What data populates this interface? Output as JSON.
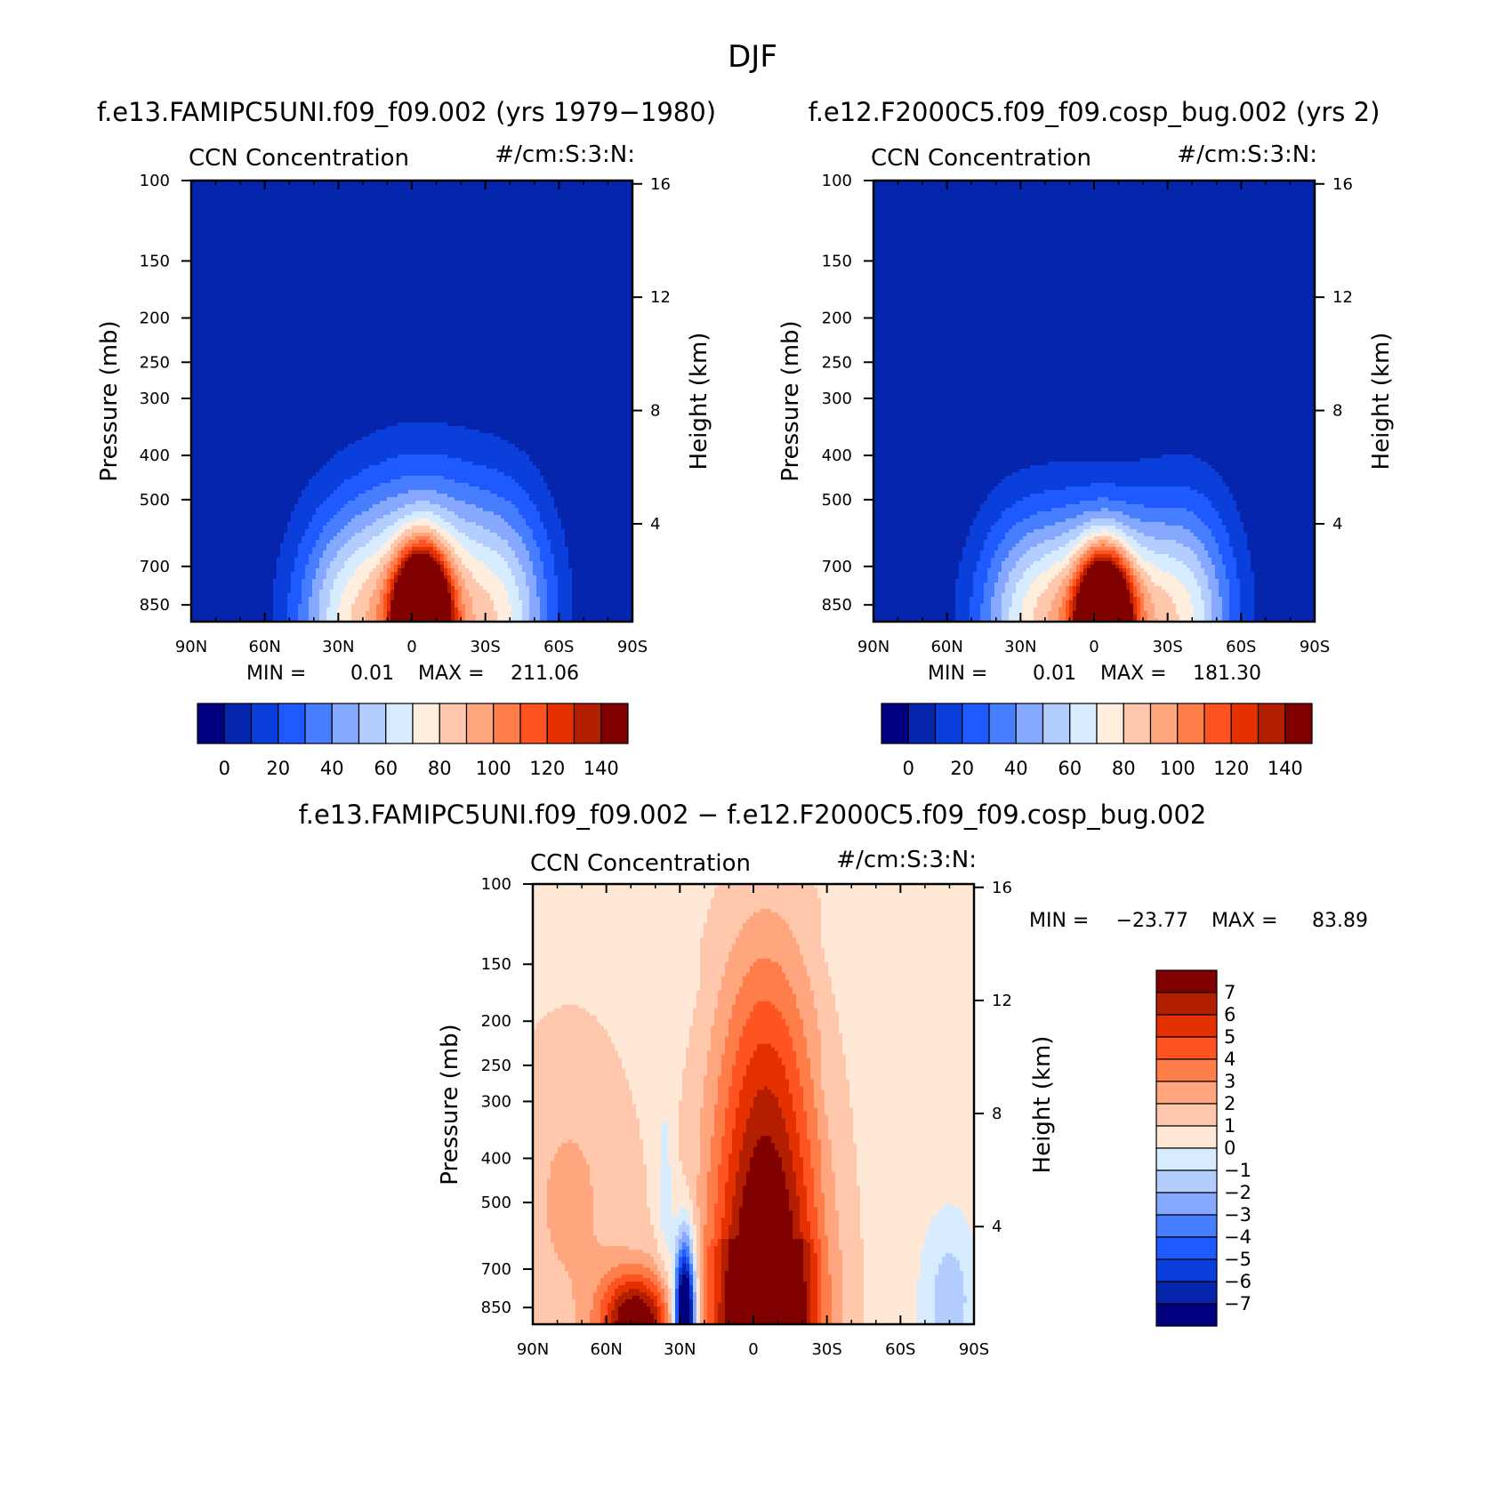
{
  "figure": {
    "season": "DJF",
    "diff_title": "f.e13.FAMIPC5UNI.f09_f09.002 − f.e12.F2000C5.f09_f09.cosp_bug.002"
  },
  "palettes": {
    "abs": [
      "#000080",
      "#0525ad",
      "#0a3fdb",
      "#1e5aff",
      "#477eff",
      "#86a8ff",
      "#b4cdff",
      "#d7ecff",
      "#ffeedd",
      "#ffc8ad",
      "#ffa67e",
      "#ff7d49",
      "#ff5422",
      "#e53000",
      "#b41e00",
      "#800000"
    ],
    "diff": [
      "#000080",
      "#0525ad",
      "#0a3fdb",
      "#1e5aff",
      "#477eff",
      "#86a8ff",
      "#b4cdff",
      "#d7ecff",
      "#ffe8d6",
      "#ffc8ad",
      "#ffa67e",
      "#ff7d49",
      "#ff5422",
      "#e53000",
      "#b41e00",
      "#800000"
    ]
  },
  "chart_data": [
    {
      "id": "panel1",
      "type": "heatmap",
      "title": "f.e13.FAMIPC5UNI.f09_f09.002 (yrs 1979−1980)",
      "left_string": "CCN Concentration",
      "right_string": "#/cm:S:3:N:",
      "xlabel": "",
      "ylabel": "Pressure (mb)",
      "y2label": "Height (km)",
      "x_ticks": [
        "90N",
        "60N",
        "30N",
        "0",
        "30S",
        "60S",
        "90S"
      ],
      "y_ticks": [
        100,
        150,
        200,
        250,
        300,
        400,
        500,
        700,
        850
      ],
      "y2_ticks": [
        16,
        12,
        8,
        4
      ],
      "ylim": [
        100,
        925
      ],
      "stats": {
        "min_label": "MIN =",
        "min": "0.01",
        "max_label": "MAX =",
        "max": "211.06"
      },
      "colorbar_labels": [
        "0",
        "20",
        "40",
        "60",
        "80",
        "100",
        "120",
        "140"
      ],
      "field": {
        "peak_lat": -4,
        "peak_value": 211.06,
        "top_pressure": 395
      }
    },
    {
      "id": "panel2",
      "type": "heatmap",
      "title": "f.e12.F2000C5.f09_f09.cosp_bug.002 (yrs 2)",
      "left_string": "CCN Concentration",
      "right_string": "#/cm:S:3:N:",
      "xlabel": "",
      "ylabel": "Pressure (mb)",
      "y2label": "Height (km)",
      "x_ticks": [
        "90N",
        "60N",
        "30N",
        "0",
        "30S",
        "60S",
        "90S"
      ],
      "y_ticks": [
        100,
        150,
        200,
        250,
        300,
        400,
        500,
        700,
        850
      ],
      "y2_ticks": [
        16,
        12,
        8,
        4
      ],
      "ylim": [
        100,
        925
      ],
      "stats": {
        "min_label": "MIN =",
        "min": "0.01",
        "max_label": "MAX =",
        "max": "181.30"
      },
      "colorbar_labels": [
        "0",
        "20",
        "40",
        "60",
        "80",
        "100",
        "120",
        "140"
      ],
      "field": {
        "peak_lat": -4,
        "peak_value": 181.3,
        "top_pressure": 470
      }
    },
    {
      "id": "panel3",
      "type": "heatmap",
      "title": "",
      "left_string": "CCN Concentration",
      "right_string": "#/cm:S:3:N:",
      "xlabel": "",
      "ylabel": "Pressure (mb)",
      "y2label": "Height (km)",
      "x_ticks": [
        "90N",
        "60N",
        "30N",
        "0",
        "30S",
        "60S",
        "90S"
      ],
      "y_ticks": [
        100,
        150,
        200,
        250,
        300,
        400,
        500,
        700,
        850
      ],
      "y2_ticks": [
        16,
        12,
        8,
        4
      ],
      "ylim": [
        100,
        925
      ],
      "stats": {
        "min_label": "MIN =",
        "min": "−23.77",
        "max_label": "MAX =",
        "max": "83.89"
      },
      "colorbar_labels": [
        "7",
        "6",
        "5",
        "4",
        "3",
        "2",
        "1",
        "0",
        "−1",
        "−2",
        "−3",
        "−4",
        "−5",
        "−6",
        "−7"
      ],
      "field": {
        "min_lat": 28,
        "min_value": -23.77,
        "max_value": 83.89
      }
    }
  ]
}
